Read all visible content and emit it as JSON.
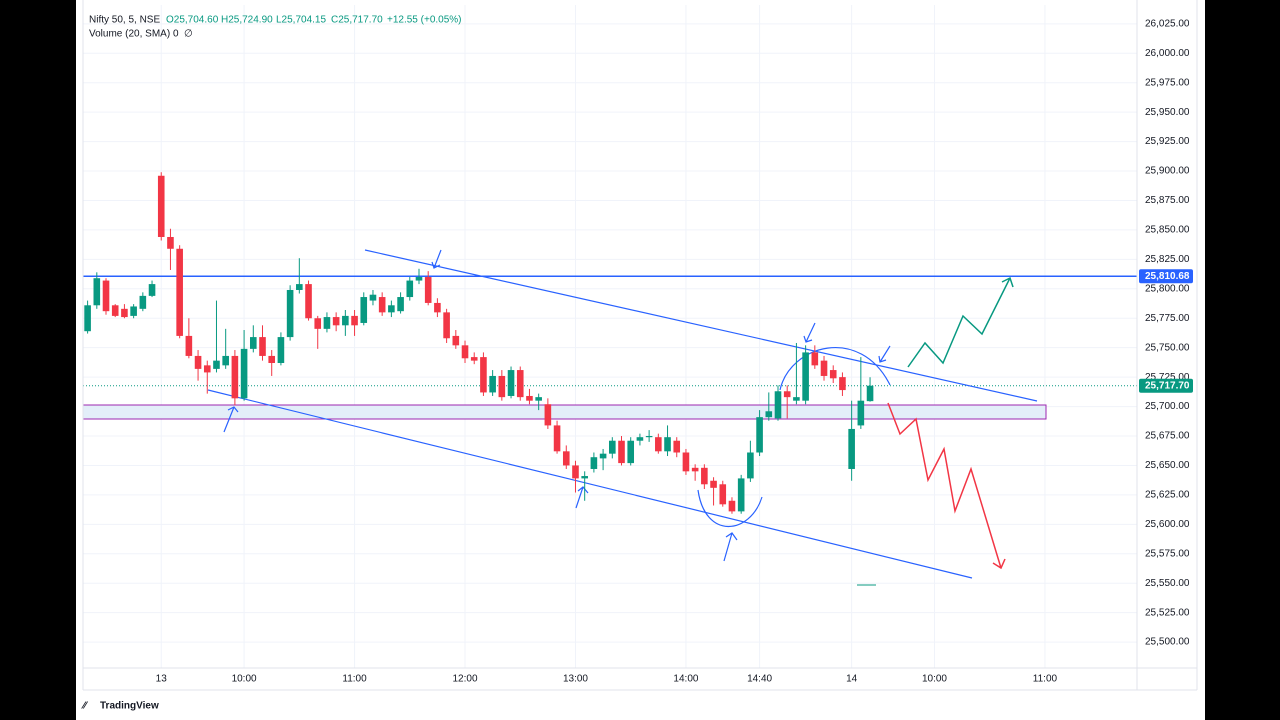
{
  "chart_data": {
    "type": "candlestick",
    "legend": {
      "symbol": "Nifty 50, 5, NSE",
      "open": "O25,704.60",
      "high": "H25,724.90",
      "low": "L25,704.15",
      "close": "C25,717.70",
      "change": "+12.55 (+0.05%)"
    },
    "volume_legend": {
      "name": "Volume (20, SMA)",
      "value": "0",
      "extra": "∅"
    },
    "logo": "TradingView",
    "up_color": "#089981",
    "down_color": "#f23645",
    "x": [
      0,
      1,
      2,
      3,
      4,
      5,
      6,
      7,
      8,
      9,
      10,
      11,
      12,
      13,
      14,
      15,
      16,
      17,
      18,
      19,
      20,
      21,
      22,
      23,
      24,
      25,
      26,
      27,
      28,
      29,
      30,
      31,
      32,
      33,
      34,
      35,
      36,
      37,
      38,
      39,
      40,
      41,
      42,
      43,
      44,
      45,
      46,
      47,
      48,
      49,
      50,
      51,
      52,
      53,
      54,
      55,
      56,
      57,
      58,
      59,
      60,
      61,
      62,
      63,
      64,
      65,
      66,
      67,
      68,
      69,
      70,
      71,
      72,
      73,
      74,
      75,
      76,
      77,
      78,
      79,
      80,
      81,
      82,
      83,
      84,
      85
    ],
    "open": [
      25764,
      25786,
      25807,
      25786,
      25783,
      25777,
      25783,
      25794,
      25896,
      25844,
      25834,
      25760,
      25743,
      25735,
      25732,
      25735,
      25743,
      25707,
      25749,
      25759,
      25743,
      25737,
      25759,
      25799,
      25804,
      25775,
      25766,
      25776,
      25769,
      25777,
      25771,
      25790,
      25793,
      25780,
      25781,
      25793,
      25807,
      25810,
      25788,
      25780,
      25760,
      25752,
      25742,
      25742,
      25712,
      25726,
      25709,
      25731,
      25709,
      25705,
      25702,
      25684,
      25662,
      25650,
      25639,
      25647,
      25656,
      25660,
      25671,
      25652,
      25671,
      25674,
      25674,
      25662,
      25671,
      25661,
      25648,
      25648,
      25637,
      25634,
      25620,
      25611,
      25639,
      25661,
      25691,
      25690,
      25713,
      25705,
      25705,
      25746,
      25739,
      25731,
      25725,
      25647,
      25684,
      25704.6
    ],
    "high": [
      25790,
      25814,
      25809,
      25787,
      25787,
      25787,
      25797,
      25807,
      25899,
      25851,
      25837,
      25775,
      25748,
      25739,
      25790,
      25766,
      25748,
      25765,
      25769,
      25769,
      25748,
      25763,
      25803,
      25826,
      25807,
      25777,
      25780,
      25780,
      25782,
      25782,
      25797,
      25799,
      25797,
      25790,
      25797,
      25810,
      25817,
      25815,
      25792,
      25783,
      25765,
      25756,
      25746,
      25746,
      25731,
      25731,
      25734,
      25734,
      25715,
      25711,
      25707,
      25688,
      25667,
      25654,
      25645,
      25661,
      25664,
      25674,
      25675,
      25674,
      25677,
      25680,
      25677,
      25684,
      25674,
      25664,
      25651,
      25651,
      25640,
      25637,
      25623,
      25642,
      25671,
      25697,
      25712,
      25718,
      25718,
      25754,
      25752,
      25752,
      25743,
      25735,
      25729,
      25705,
      25742,
      25724.9
    ],
    "low": [
      25762,
      25783,
      25778,
      25776,
      25775,
      25775,
      25781,
      25793,
      25841,
      25816,
      25758,
      25741,
      25722,
      25711,
      25729,
      25732,
      25701,
      25705,
      25746,
      25739,
      25726,
      25735,
      25756,
      25796,
      25773,
      25749,
      25763,
      25764,
      25760,
      25760,
      25769,
      25786,
      25777,
      25776,
      25779,
      25790,
      25804,
      25786,
      25776,
      25754,
      25749,
      25737,
      25736,
      25709,
      25709,
      25705,
      25707,
      25705,
      25702,
      25697,
      25681,
      25660,
      25647,
      25627,
      25620,
      25644,
      25646,
      25656,
      25650,
      25650,
      25667,
      25670,
      25660,
      25658,
      25657,
      25642,
      25637,
      25630,
      25616,
      25615,
      25609,
      25609,
      25636,
      25658,
      25688,
      25688,
      25690,
      25702,
      25702,
      25732,
      25722,
      25720,
      25709,
      25637,
      25681,
      25704.15
    ],
    "close": [
      25786,
      25809,
      25781,
      25777,
      25776,
      25785,
      25794,
      25804,
      25844,
      25834,
      25760,
      25743,
      25732,
      25729,
      25739,
      25743,
      25707,
      25749,
      25759,
      25743,
      25737,
      25759,
      25799,
      25804,
      25775,
      25766,
      25776,
      25769,
      25777,
      25769,
      25793,
      25795,
      25780,
      25786,
      25793,
      25807,
      25810,
      25788,
      25780,
      25758,
      25752,
      25741,
      25739,
      25712,
      25726,
      25708,
      25731,
      25708,
      25705,
      25708,
      25684,
      25662,
      25650,
      25639,
      25641,
      25657,
      25660,
      25671,
      25652,
      25671,
      25674,
      25675,
      25662,
      25674,
      25661,
      25645,
      25645,
      25634,
      25631,
      25617,
      25611,
      25639,
      25661,
      25691,
      25696,
      25713,
      25708,
      25708,
      25746,
      25735,
      25726,
      25724,
      25714,
      25681,
      25705,
      25717.7
    ],
    "xlim": [
      -0.5,
      114
    ],
    "ylim": [
      25478,
      26041
    ],
    "xticks": [
      {
        "value": 8,
        "label": "13"
      },
      {
        "value": 17,
        "label": "10:00"
      },
      {
        "value": 29,
        "label": "11:00"
      },
      {
        "value": 41,
        "label": "12:00"
      },
      {
        "value": 53,
        "label": "13:00"
      },
      {
        "value": 65,
        "label": "14:00"
      },
      {
        "value": 73,
        "label": "14:40"
      },
      {
        "value": 83,
        "label": "14"
      },
      {
        "value": 92,
        "label": "10:00"
      },
      {
        "value": 104,
        "label": "11:00"
      }
    ],
    "yticks": [
      {
        "value": 25500,
        "label": "25,500.00"
      },
      {
        "value": 25525,
        "label": "25,525.00"
      },
      {
        "value": 25550,
        "label": "25,550.00"
      },
      {
        "value": 25575,
        "label": "25,575.00"
      },
      {
        "value": 25600,
        "label": "25,600.00"
      },
      {
        "value": 25625,
        "label": "25,625.00"
      },
      {
        "value": 25650,
        "label": "25,650.00"
      },
      {
        "value": 25675,
        "label": "25,675.00"
      },
      {
        "value": 25700,
        "label": "25,700.00"
      },
      {
        "value": 25725,
        "label": "25,725.00"
      },
      {
        "value": 25750,
        "label": "25,750.00"
      },
      {
        "value": 25775,
        "label": "25,775.00"
      },
      {
        "value": 25800,
        "label": "25,800.00"
      },
      {
        "value": 25825,
        "label": "25,825.00"
      },
      {
        "value": 25850,
        "label": "25,850.00"
      },
      {
        "value": 25875,
        "label": "25,875.00"
      },
      {
        "value": 25900,
        "label": "25,900.00"
      },
      {
        "value": 25925,
        "label": "25,925.00"
      },
      {
        "value": 25950,
        "label": "25,950.00"
      },
      {
        "value": 25975,
        "label": "25,975.00"
      },
      {
        "value": 26000,
        "label": "26,000.00"
      },
      {
        "value": 26025,
        "label": "26,025.00"
      }
    ],
    "grid": true,
    "level": {
      "value": 25810.68,
      "label": "25,810.68",
      "color": "#2962ff"
    },
    "last_price": {
      "value": 25717.7,
      "label": "25,717.70",
      "color": "#089981"
    }
  }
}
